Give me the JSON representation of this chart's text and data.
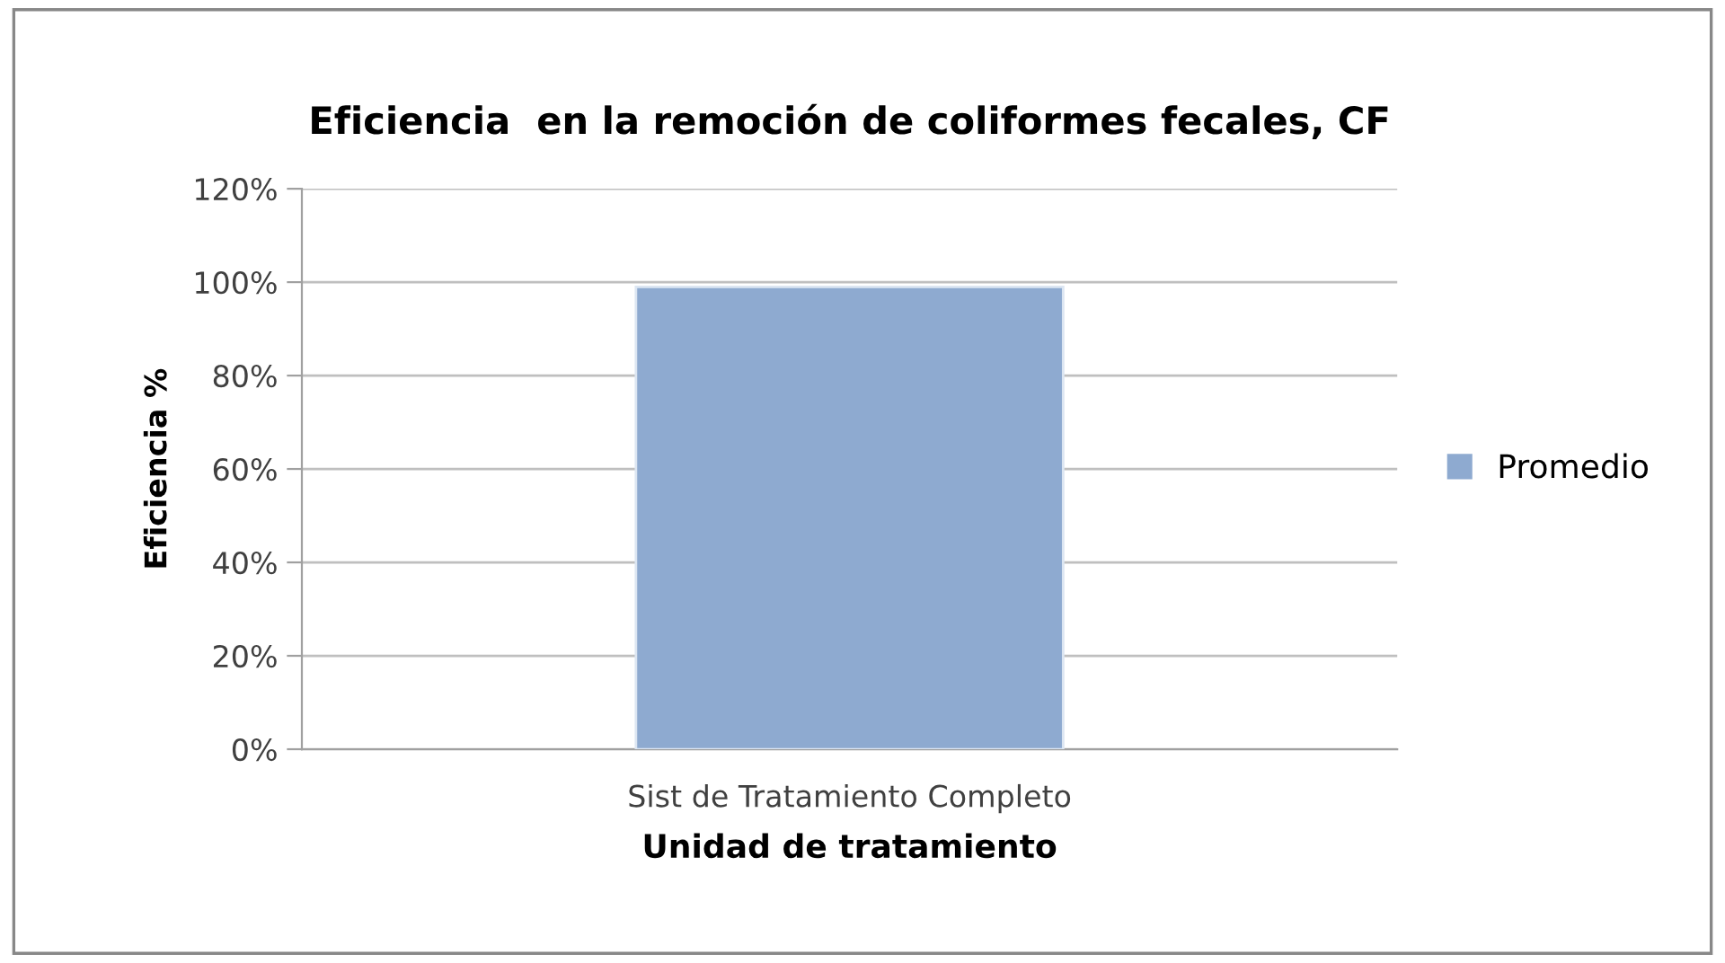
{
  "chart_data": {
    "type": "bar",
    "title": "Eficiencia  en la remoción de coliformes fecales, CF",
    "xlabel": "Unidad de tratamiento",
    "ylabel": "Eficiencia %",
    "categories": [
      "Sist de Tratamiento Completo"
    ],
    "series": [
      {
        "name": "Promedio",
        "color": "#8eaad0",
        "values": [
          99
        ]
      }
    ],
    "ylim": [
      0,
      120
    ],
    "yticks": [
      {
        "value": 0,
        "label": "0%"
      },
      {
        "value": 20,
        "label": "20%"
      },
      {
        "value": 40,
        "label": "40%"
      },
      {
        "value": 60,
        "label": "60%"
      },
      {
        "value": 80,
        "label": "80%"
      },
      {
        "value": 100,
        "label": "100%"
      },
      {
        "value": 120,
        "label": "120%"
      }
    ],
    "grid": "y",
    "legend": "right"
  }
}
